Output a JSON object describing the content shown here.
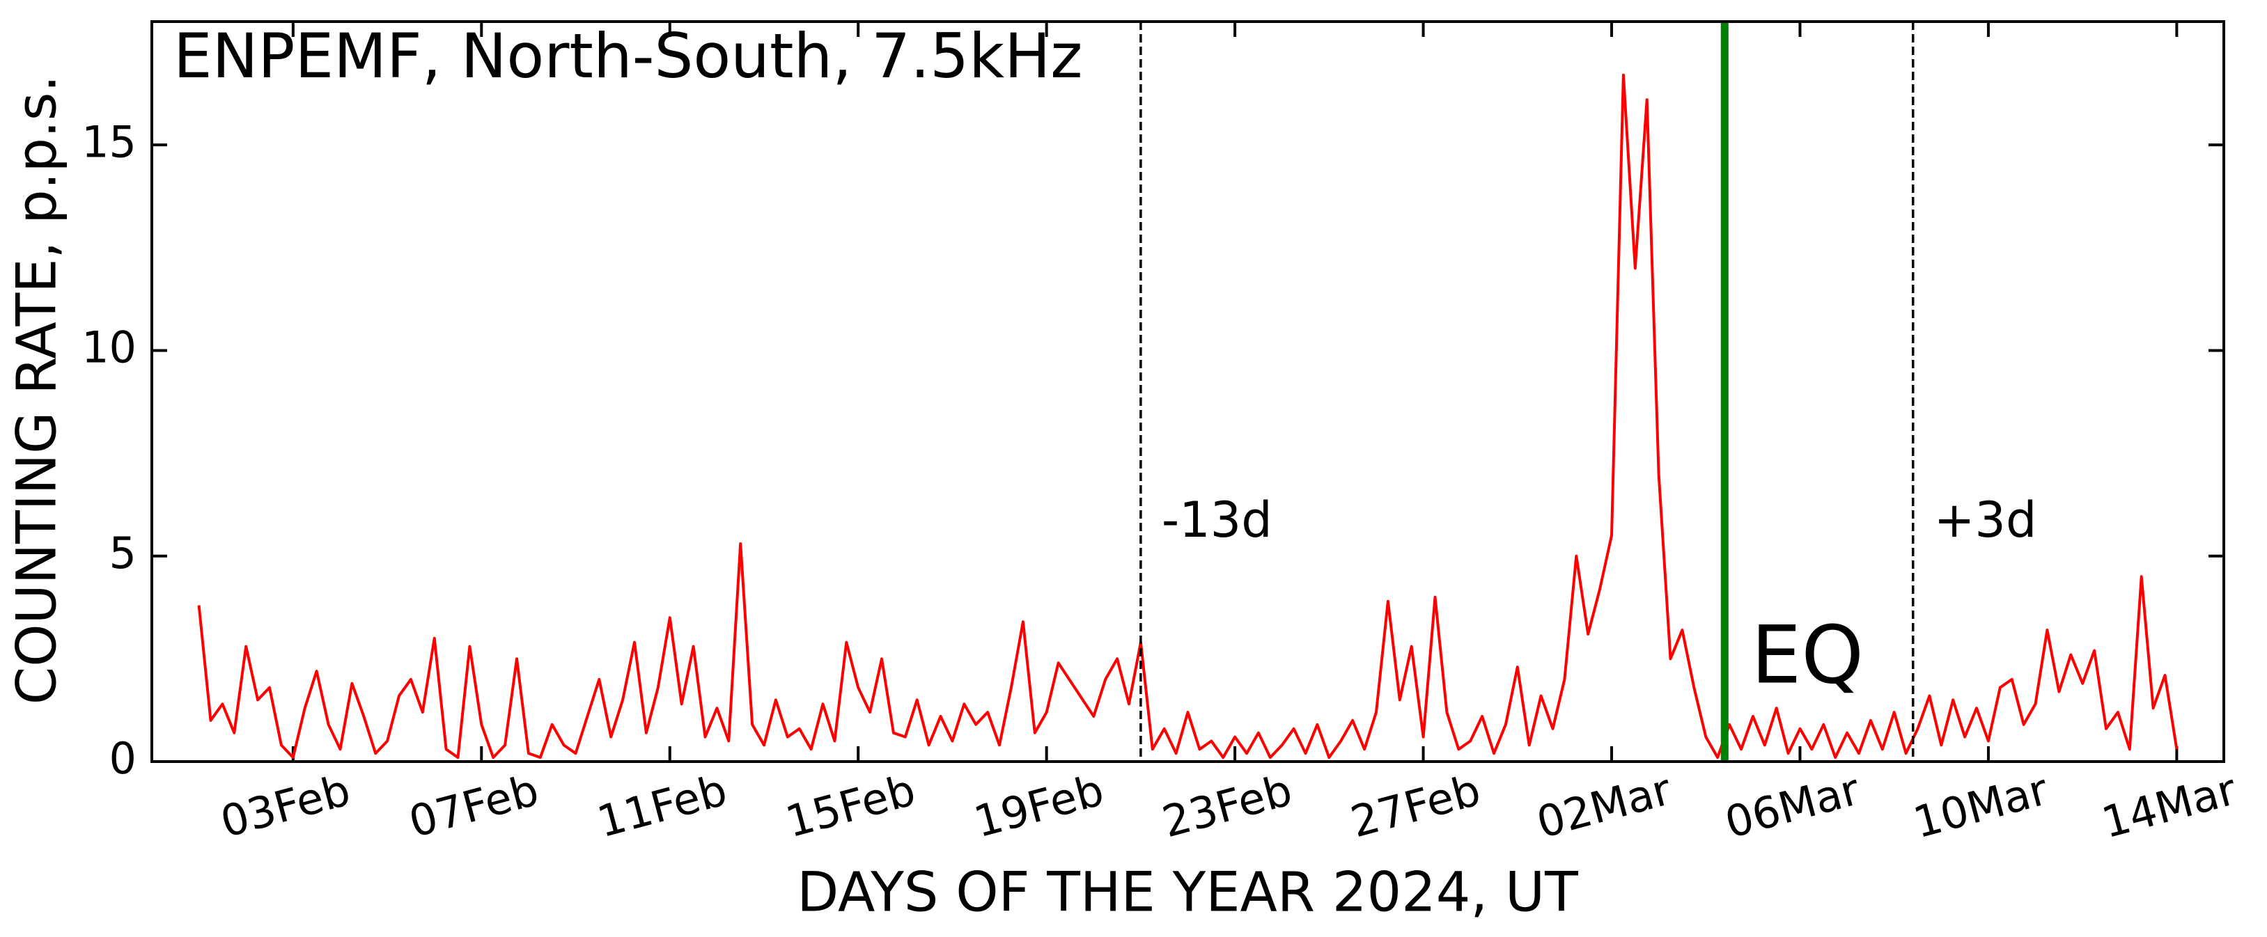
{
  "chart_data": {
    "type": "line",
    "title": "ENPEMF, North-South, 7.5kHz",
    "xlabel": "DAYS OF THE YEAR 2024, UT",
    "ylabel": "COUNTING RATE, p.p.s.",
    "color": "#ff0000",
    "x": [
      32,
      32.25,
      32.5,
      32.75,
      33,
      33.25,
      33.5,
      33.75,
      34,
      34.25,
      34.5,
      34.75,
      35,
      35.25,
      35.5,
      35.75,
      36,
      36.25,
      36.5,
      36.75,
      37,
      37.25,
      37.5,
      37.75,
      38,
      38.25,
      38.5,
      38.75,
      39,
      39.25,
      39.5,
      39.75,
      40,
      40.25,
      40.5,
      40.75,
      41,
      41.25,
      41.5,
      41.75,
      42,
      42.25,
      42.5,
      42.75,
      43,
      43.25,
      43.5,
      43.75,
      44,
      44.25,
      44.5,
      44.75,
      45,
      45.25,
      45.5,
      45.75,
      46,
      46.25,
      46.5,
      46.75,
      47,
      47.25,
      47.5,
      47.75,
      48,
      48.25,
      48.5,
      48.75,
      49,
      49.25,
      49.5,
      49.75,
      50,
      50.25,
      51,
      51.25,
      51.5,
      51.75,
      52,
      52.25,
      52.5,
      52.75,
      53,
      53.25,
      53.5,
      53.75,
      54,
      54.25,
      54.5,
      54.75,
      55,
      55.25,
      55.5,
      55.75,
      56,
      56.25,
      56.5,
      56.75,
      57,
      57.25,
      57.5,
      57.75,
      58,
      58.25,
      58.5,
      58.75,
      59,
      59.25,
      59.5,
      59.75,
      60,
      60.25,
      60.5,
      60.75,
      61,
      61.25,
      61.5,
      61.75,
      62,
      62.25,
      62.5,
      62.75,
      63,
      63.25,
      63.5,
      63.75,
      64,
      64.25,
      64.5,
      64.75,
      65,
      65.25,
      65.5,
      65.75,
      66,
      66.25,
      66.5,
      66.75,
      67,
      67.25,
      67.5,
      67.75,
      68,
      68.25,
      68.5,
      68.75,
      69,
      69.25,
      69.5,
      69.75,
      70,
      70.25,
      70.5,
      70.75,
      71,
      71.25,
      71.5,
      71.75,
      72,
      72.25,
      72.5,
      72.75,
      73,
      73.25,
      73.5,
      73.75,
      74
    ],
    "values": [
      3.8,
      1.0,
      1.4,
      0.7,
      2.8,
      1.5,
      1.8,
      0.4,
      0.1,
      1.3,
      2.2,
      0.9,
      0.3,
      1.9,
      1.1,
      0.2,
      0.5,
      1.6,
      2.0,
      1.2,
      3.0,
      0.3,
      0.1,
      2.8,
      0.9,
      0.1,
      0.4,
      2.5,
      0.2,
      0.1,
      0.9,
      0.4,
      0.2,
      1.1,
      2.0,
      0.6,
      1.5,
      2.9,
      0.7,
      1.8,
      3.5,
      1.4,
      2.8,
      0.6,
      1.3,
      0.5,
      5.3,
      0.9,
      0.4,
      1.5,
      0.6,
      0.8,
      0.3,
      1.4,
      0.5,
      2.9,
      1.8,
      1.2,
      2.5,
      0.7,
      0.6,
      1.5,
      0.4,
      1.1,
      0.5,
      1.4,
      0.9,
      1.2,
      0.4,
      1.8,
      3.4,
      0.7,
      1.2,
      2.4,
      1.1,
      2.0,
      2.5,
      1.4,
      2.9,
      0.3,
      0.8,
      0.2,
      1.2,
      0.3,
      0.5,
      0.1,
      0.6,
      0.2,
      0.7,
      0.1,
      0.4,
      0.8,
      0.2,
      0.9,
      0.1,
      0.5,
      1.0,
      0.3,
      1.2,
      3.9,
      1.5,
      2.8,
      0.6,
      4.0,
      1.2,
      0.3,
      0.5,
      1.1,
      0.2,
      0.9,
      2.3,
      0.4,
      1.6,
      0.8,
      2.0,
      5.0,
      3.1,
      4.2,
      5.5,
      16.7,
      12.0,
      16.1,
      7.0,
      2.5,
      3.2,
      1.8,
      0.6,
      0.1,
      0.9,
      0.3,
      1.1,
      0.4,
      1.3,
      0.2,
      0.8,
      0.3,
      0.9,
      0.1,
      0.7,
      0.2,
      1.0,
      0.3,
      1.2,
      0.2,
      0.8,
      1.6,
      0.4,
      1.5,
      0.6,
      1.3,
      0.5,
      1.8,
      2.0,
      0.9,
      1.4,
      3.2,
      1.7,
      2.6,
      1.9,
      2.7,
      0.8,
      1.2,
      0.3,
      4.5,
      1.3,
      2.1,
      0.3
    ],
    "xlim": [
      31,
      75
    ],
    "xticks": [
      {
        "value": 34,
        "label": "03Feb"
      },
      {
        "value": 38,
        "label": "07Feb"
      },
      {
        "value": 42,
        "label": "11Feb"
      },
      {
        "value": 46,
        "label": "15Feb"
      },
      {
        "value": 50,
        "label": "19Feb"
      },
      {
        "value": 54,
        "label": "23Feb"
      },
      {
        "value": 58,
        "label": "27Feb"
      },
      {
        "value": 62,
        "label": "02Mar"
      },
      {
        "value": 66,
        "label": "06Mar"
      },
      {
        "value": 70,
        "label": "10Mar"
      },
      {
        "value": 74,
        "label": "14Mar"
      }
    ],
    "ylim": [
      0,
      18
    ],
    "yticks": [
      0,
      5,
      10,
      15
    ],
    "markers": [
      {
        "x": 52,
        "label": "-13d",
        "color": "#000000",
        "dashed": true
      },
      {
        "x": 64.4,
        "label": "EQ",
        "color": "#008000",
        "dashed": false
      },
      {
        "x": 68.4,
        "label": "+3d",
        "color": "#000000",
        "dashed": true
      }
    ]
  }
}
